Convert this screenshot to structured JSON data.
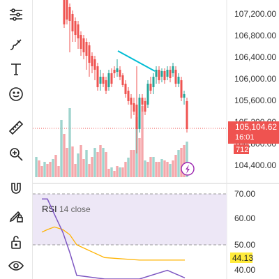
{
  "toolbar": {
    "tools": [
      {
        "icon": "chart-settings-icon"
      },
      {
        "icon": "brush-icon"
      },
      {
        "icon": "text-tool-icon"
      },
      {
        "icon": "emoji-icon"
      },
      {
        "icon": "ruler-icon"
      },
      {
        "icon": "zoom-in-icon"
      },
      {
        "icon": "magnet-icon"
      },
      {
        "icon": "lock-drawing-icon"
      },
      {
        "icon": "unlock-icon"
      },
      {
        "icon": "eye-icon"
      }
    ]
  },
  "colors": {
    "up": "#26a69a",
    "down": "#ef5350",
    "volume_up": "#9fd4ce",
    "volume_down": "#f5a7ab",
    "price_badge": "#ef5350",
    "rsi_line": "#7e57c2",
    "rsi_ma_line": "#ffb300",
    "rsi_band": "#ede7f6",
    "trendline": "#00bcd4",
    "rsi_value_badge": "#ffeb3b"
  },
  "price_axis": {
    "ticks": [
      "107,200.00",
      "106,800.00",
      "106,400.00",
      "106,000.00",
      "105,600.00",
      "105,200.00",
      "104,800.00",
      "104,400.00"
    ]
  },
  "price_badge": {
    "price": "105,104.62",
    "countdown": "16:01",
    "volume": "712"
  },
  "rsi": {
    "title": "RSI",
    "params": "14 close",
    "ticks": [
      "70.00",
      "60.00",
      "50.00",
      "40.00"
    ],
    "current_value": "44.13"
  },
  "chart_data": [
    {
      "type": "line",
      "title": "",
      "series": [
        {
          "name": "RSI",
          "values": [
            68,
            68,
            62,
            55,
            47,
            38,
            30,
            35,
            40,
            37
          ]
        },
        {
          "name": "",
          "values": [
            55,
            56,
            57,
            56,
            54,
            50,
            45,
            44,
            44,
            44
          ]
        }
      ],
      "ylim": [
        35,
        72
      ],
      "yticks": [
        70,
        60,
        50,
        40
      ]
    }
  ]
}
